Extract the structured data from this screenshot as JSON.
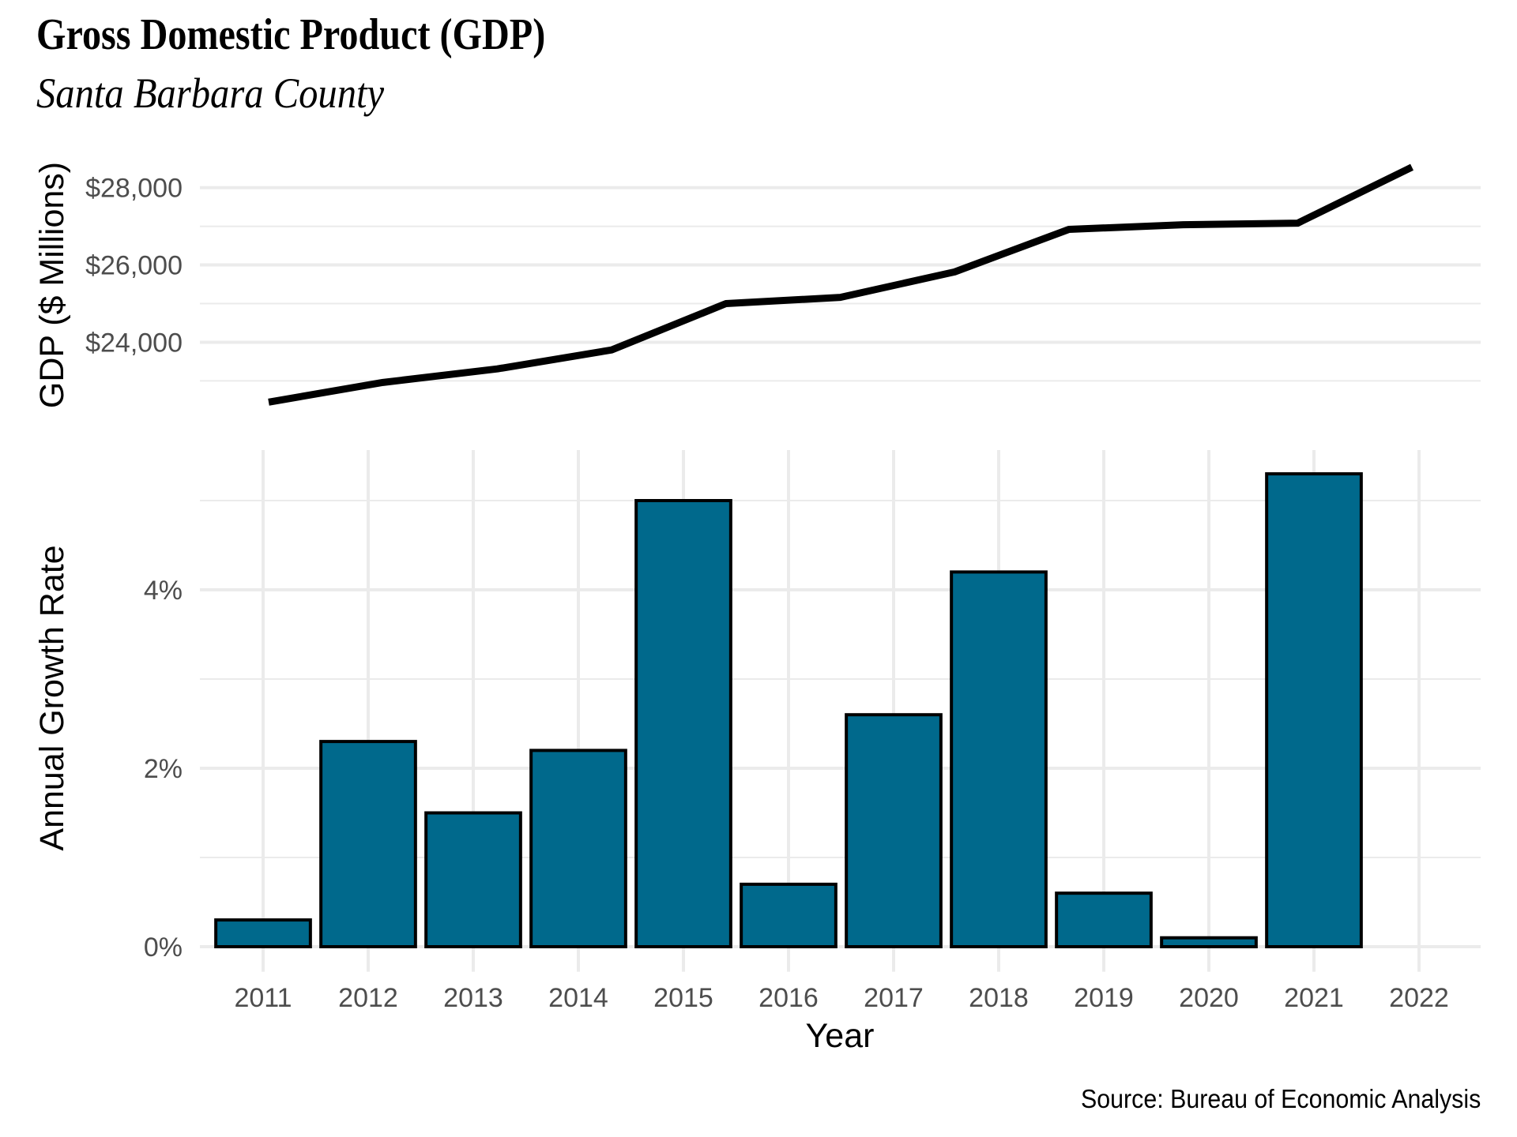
{
  "header": {
    "title": "Gross Domestic Product (GDP)",
    "subtitle": "Santa Barbara County"
  },
  "footer": {
    "caption": "Source: Bureau of Economic Analysis"
  },
  "colors": {
    "bar_fill": "#00698C",
    "bar_outline": "#000000",
    "line": "#000000",
    "grid": "#EBEBEB",
    "tick_text": "#4D4D4D"
  },
  "chart_data": [
    {
      "type": "line",
      "panel": "top",
      "title": "Gross Domestic Product (GDP)",
      "subtitle": "Santa Barbara County",
      "xlabel": "",
      "ylabel": "GDP ($ Millions)",
      "x": [
        2011,
        2012,
        2013,
        2014,
        2015,
        2016,
        2017,
        2018,
        2019,
        2020,
        2021
      ],
      "series": [
        {
          "name": "GDP",
          "values": [
            22450,
            22960,
            23310,
            23800,
            25000,
            25160,
            25820,
            26920,
            27040,
            27080,
            28530
          ]
        }
      ],
      "ylim": [
        22150,
        28830
      ],
      "yticks": [
        24000,
        26000,
        28000
      ],
      "ytick_labels": [
        "$24,000",
        "$26,000",
        "$28,000"
      ],
      "y_minor_ticks": [
        23000,
        25000,
        27000
      ],
      "grid": true,
      "legend": "none"
    },
    {
      "type": "bar",
      "panel": "bottom",
      "xlabel": "Year",
      "ylabel": "Annual Growth Rate",
      "categories": [
        "2011",
        "2012",
        "2013",
        "2014",
        "2015",
        "2016",
        "2017",
        "2018",
        "2019",
        "2020",
        "2021",
        "2022"
      ],
      "values": [
        0.3,
        2.3,
        1.5,
        2.2,
        5.0,
        0.7,
        2.6,
        4.2,
        0.6,
        0.1,
        5.3,
        null
      ],
      "value_unit": "percent",
      "ylim": [
        -0.28,
        5.57
      ],
      "yticks": [
        0,
        2,
        4
      ],
      "ytick_labels": [
        "0%",
        "2%",
        "4%"
      ],
      "y_minor_ticks": [
        1,
        3,
        5
      ],
      "grid": true,
      "legend": "none"
    }
  ]
}
